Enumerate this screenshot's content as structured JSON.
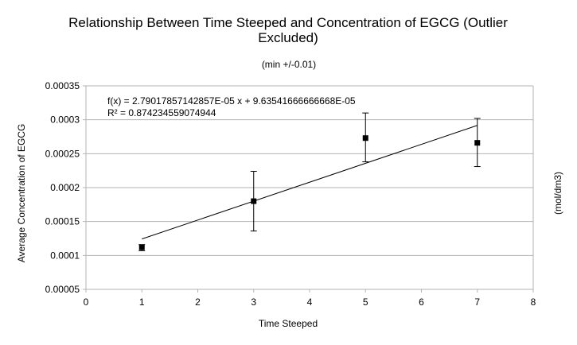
{
  "chart_data": {
    "type": "scatter",
    "title_lines": [
      "Relationship Between Time Steeped and Concentration of EGCG (Outlier",
      "Excluded)"
    ],
    "subtitle": "(min +/-0.01)",
    "xlabel": "Time Steeped",
    "ylabel": "Average Concentration of EGCG",
    "ylabel_right": "(mol/dm3)",
    "xlim": [
      0,
      8
    ],
    "ylim": [
      5e-05,
      0.00035
    ],
    "x_ticks": [
      "0",
      "1",
      "2",
      "3",
      "4",
      "5",
      "6",
      "7",
      "8"
    ],
    "y_ticks": [
      "0.00005",
      "0.0001",
      "0.00015",
      "0.0002",
      "0.00025",
      "0.0003",
      "0.00035"
    ],
    "grid": "horizontal",
    "legend": "none",
    "points": [
      {
        "x": 1,
        "y": 0.000112,
        "err_low": 0.000107,
        "err_high": 0.000116
      },
      {
        "x": 3,
        "y": 0.00018,
        "err_low": 0.000136,
        "err_high": 0.000224
      },
      {
        "x": 5,
        "y": 0.000273,
        "err_low": 0.000238,
        "err_high": 0.00031
      },
      {
        "x": 7,
        "y": 0.000266,
        "err_low": 0.000231,
        "err_high": 0.000302
      }
    ],
    "trendline": {
      "slope": 2.79017857142857e-05,
      "intercept": 9.63541666666668e-05,
      "x_range": [
        1,
        7
      ],
      "equation": "f(x) = 2.79017857142857E-05 x + 9.63541666666668E-05",
      "r_squared": "R² = 0.874234559074944"
    },
    "colors": {
      "marker": "#000000",
      "grid": "#b3b3b3",
      "axis": "#b3b3b3",
      "line": "#000000"
    }
  }
}
